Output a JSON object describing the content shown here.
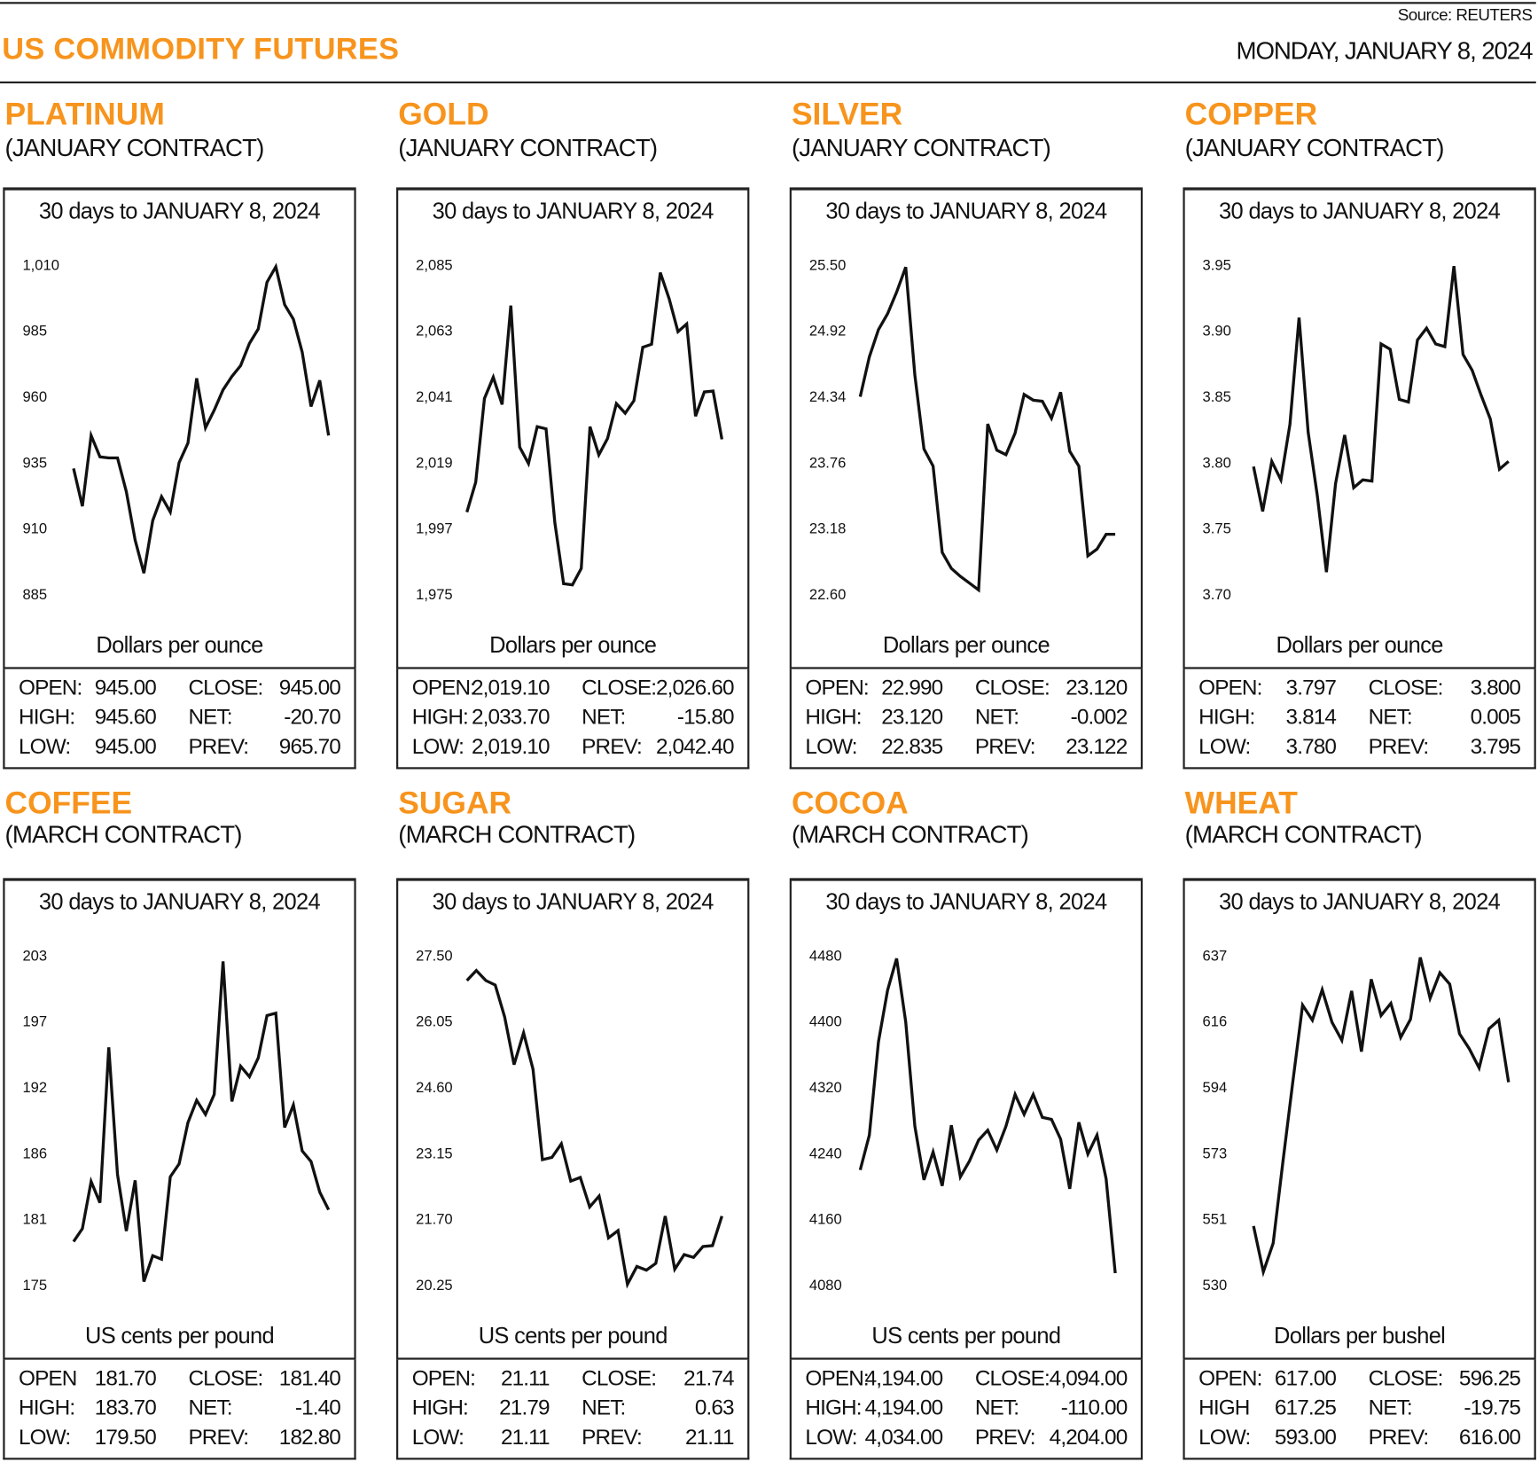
{
  "header": {
    "title": "US COMMODITY FUTURES",
    "source": "Source: REUTERS",
    "date": "MONDAY, JANUARY 8, 2024"
  },
  "colors": {
    "accent": "#F7941D",
    "line": "#111111"
  },
  "chart_data": [
    {
      "type": "line",
      "name": "PLATINUM",
      "contract": "(JANUARY CONTRACT)",
      "title": "30 days to JANUARY 8, 2024",
      "ylabel": "Dollars per ounce",
      "yticks": [
        "1,010",
        "985",
        "960",
        "935",
        "910",
        "885"
      ],
      "ytick_values": [
        1010,
        985,
        960,
        935,
        910,
        885
      ],
      "ylim": [
        885,
        1010
      ],
      "values": [
        932.8,
        918.5,
        945.3,
        937.2,
        936.8,
        936.8,
        924,
        905.6,
        893.1,
        913,
        922.1,
        916.3,
        935,
        942.4,
        967,
        948.2,
        954.9,
        962.6,
        967.7,
        971.8,
        980.2,
        985.7,
        1003.4,
        1009.3,
        994.9,
        989.4,
        976.9,
        956.3,
        966.2,
        945.3
      ],
      "stats": [
        [
          "OPEN:",
          "945.00",
          "CLOSE:",
          "945.00"
        ],
        [
          "HIGH:",
          "945.60",
          "NET:",
          "-20.70"
        ],
        [
          "LOW:",
          "945.00",
          "PREV:",
          "965.70"
        ]
      ]
    },
    {
      "type": "line",
      "name": "GOLD",
      "contract": "(JANUARY CONTRACT)",
      "title": "30 days to JANUARY 8, 2024",
      "ylabel": "Dollars per ounce",
      "yticks": [
        "2,085",
        "2,063",
        "2,041",
        "2,019",
        "1,997",
        "1,975"
      ],
      "ytick_values": [
        2085,
        2063,
        2041,
        2019,
        1997,
        1975
      ],
      "ylim": [
        1975,
        2085
      ],
      "values": [
        2002.5,
        2012.5,
        2040.4,
        2047.5,
        2038.4,
        2071.4,
        2024.2,
        2018.7,
        2031,
        2030.3,
        1998.9,
        1978.6,
        1978.2,
        1983.7,
        2031,
        2021.6,
        2027.1,
        2038.7,
        2035.5,
        2039.7,
        2057.5,
        2058.5,
        2082.4,
        2073.7,
        2062.7,
        2065.3,
        2034.5,
        2042.6,
        2042.9,
        2026.8
      ],
      "stats": [
        [
          "OPEN:",
          "2,019.10",
          "CLOSE:",
          "2,026.60"
        ],
        [
          "HIGH:",
          "2,033.70",
          "NET:",
          "-15.80"
        ],
        [
          "LOW:",
          "2,019.10",
          "PREV:",
          "2,042.40"
        ]
      ]
    },
    {
      "type": "line",
      "name": "SILVER",
      "contract": "(JANUARY CONTRACT)",
      "title": "30 days to JANUARY 8, 2024",
      "ylabel": "Dollars per ounce",
      "yticks": [
        "25.50",
        "24.92",
        "24.34",
        "23.76",
        "23.18",
        "22.60"
      ],
      "ytick_values": [
        25.5,
        24.92,
        24.34,
        23.76,
        23.18,
        22.6
      ],
      "ylim": [
        22.6,
        25.5
      ],
      "values": [
        24.34,
        24.69,
        24.93,
        25.07,
        25.26,
        25.48,
        24.53,
        23.88,
        23.73,
        22.97,
        22.83,
        22.76,
        22.7,
        22.64,
        24.1,
        23.87,
        23.83,
        24.02,
        24.36,
        24.31,
        24.3,
        24.15,
        24.38,
        23.86,
        23.73,
        22.94,
        23.0,
        23.13,
        23.13
      ],
      "stats": [
        [
          "OPEN:",
          "22.990",
          "CLOSE:",
          "23.120"
        ],
        [
          "HIGH:",
          "23.120",
          "NET:",
          "-0.002"
        ],
        [
          "LOW:",
          "22.835",
          "PREV:",
          "23.122"
        ]
      ]
    },
    {
      "type": "line",
      "name": "COPPER",
      "contract": "(JANUARY CONTRACT)",
      "title": "30 days to JANUARY 8, 2024",
      "ylabel": "Dollars per ounce",
      "yticks": [
        "3.95",
        "3.90",
        "3.85",
        "3.80",
        "3.75",
        "3.70"
      ],
      "ytick_values": [
        3.95,
        3.9,
        3.85,
        3.8,
        3.75,
        3.7
      ],
      "ylim": [
        3.7,
        3.95
      ],
      "values": [
        3.797,
        3.763,
        3.801,
        3.787,
        3.829,
        3.91,
        3.823,
        3.775,
        3.717,
        3.784,
        3.821,
        3.781,
        3.787,
        3.786,
        3.89,
        3.886,
        3.848,
        3.846,
        3.893,
        3.902,
        3.89,
        3.888,
        3.949,
        3.882,
        3.87,
        3.851,
        3.833,
        3.795,
        3.801
      ],
      "stats": [
        [
          "OPEN:",
          "3.797",
          "CLOSE:",
          "3.800"
        ],
        [
          "HIGH:",
          "3.814",
          "NET:",
          "0.005"
        ],
        [
          "LOW:",
          "3.780",
          "PREV:",
          "3.795"
        ]
      ]
    },
    {
      "type": "line",
      "name": "COFFEE",
      "contract": "(MARCH CONTRACT)",
      "title": "30 days to JANUARY 8, 2024",
      "ylabel": "US cents per pound",
      "yticks": [
        "203",
        "197",
        "192",
        "186",
        "181",
        "175"
      ],
      "ytick_values": [
        203,
        197.4,
        191.8,
        186.2,
        180.6,
        175
      ],
      "ylim": [
        175,
        203
      ],
      "values": [
        178.7,
        179.8,
        183.8,
        182,
        195.2,
        184.4,
        179.6,
        183.9,
        175.3,
        177.5,
        177.2,
        184.2,
        185.3,
        188.8,
        190.7,
        189.5,
        191.2,
        202.5,
        190.6,
        193.6,
        192.7,
        194.3,
        197.9,
        198.1,
        188.4,
        190.3,
        186.4,
        185.5,
        182.9,
        181.4
      ],
      "stats": [
        [
          "OPEN",
          "181.70",
          "CLOSE:",
          "181.40"
        ],
        [
          "HIGH:",
          "183.70",
          "NET:",
          "-1.40"
        ],
        [
          "LOW:",
          "179.50",
          "PREV:",
          "182.80"
        ]
      ]
    },
    {
      "type": "line",
      "name": "SUGAR",
      "contract": "(MARCH CONTRACT)",
      "title": "30 days to JANUARY 8, 2024",
      "ylabel": "US cents per pound",
      "yticks": [
        "27.50",
        "26.05",
        "24.60",
        "23.15",
        "21.70",
        "20.25"
      ],
      "ytick_values": [
        27.5,
        26.05,
        24.6,
        23.15,
        21.7,
        20.25
      ],
      "ylim": [
        20.25,
        27.5
      ],
      "values": [
        26.95,
        27.17,
        26.95,
        26.85,
        26.15,
        25.1,
        25.8,
        25.0,
        23.01,
        23.06,
        23.36,
        22.54,
        22.62,
        21.97,
        22.21,
        21.29,
        21.45,
        20.27,
        20.66,
        20.58,
        20.73,
        21.77,
        20.6,
        20.92,
        20.86,
        21.1,
        21.12,
        21.77
      ],
      "stats": [
        [
          "OPEN:",
          "21.11",
          "CLOSE:",
          "21.74"
        ],
        [
          "HIGH:",
          "21.79",
          "NET:",
          "0.63"
        ],
        [
          "LOW:",
          "21.11",
          "PREV:",
          "21.11"
        ]
      ]
    },
    {
      "type": "line",
      "name": "COCOA",
      "contract": "(MARCH CONTRACT)",
      "title": "30 days to JANUARY 8, 2024",
      "ylabel": "US cents per pound",
      "yticks": [
        "4480",
        "4400",
        "4320",
        "4240",
        "4160",
        "4080"
      ],
      "ytick_values": [
        4480,
        4400,
        4320,
        4240,
        4160,
        4080
      ],
      "ylim": [
        4080,
        4480
      ],
      "values": [
        4219.8,
        4262,
        4375.2,
        4437.9,
        4476.4,
        4399.3,
        4272.8,
        4207.7,
        4241.5,
        4200.5,
        4274,
        4211.3,
        4230.6,
        4255.9,
        4268,
        4243.9,
        4272.8,
        4311.4,
        4287.3,
        4311.4,
        4283.6,
        4281.2,
        4257.1,
        4196.9,
        4277.6,
        4239,
        4262,
        4208.9,
        4094.5
      ],
      "stats": [
        [
          "OPEN:",
          "4,194.00",
          "CLOSE:",
          "4,094.00"
        ],
        [
          "HIGH:",
          "4,194.00",
          "NET:",
          "-110.00"
        ],
        [
          "LOW:",
          "4,034.00",
          "PREV:",
          "4,204.00"
        ]
      ]
    },
    {
      "type": "line",
      "name": "WHEAT",
      "contract": "(MARCH CONTRACT)",
      "title": "30 days to JANUARY 8, 2024",
      "ylabel": "Dollars per bushel",
      "yticks": [
        "637",
        "616",
        "594",
        "573",
        "551",
        "530"
      ],
      "ytick_values": [
        637,
        615.6,
        594.2,
        572.8,
        551.4,
        530
      ],
      "ylim": [
        530,
        637
      ],
      "values": [
        549.2,
        534.3,
        543.6,
        570.2,
        595.9,
        620.9,
        616,
        625.9,
        615.3,
        609.5,
        625.5,
        605.8,
        629.3,
        617.5,
        621.5,
        610.4,
        616.3,
        636.4,
        623.1,
        631.4,
        627.7,
        611.6,
        606.7,
        600.5,
        613.2,
        616,
        595.9
      ],
      "stats": [
        [
          "OPEN:",
          "617.00",
          "CLOSE:",
          "596.25"
        ],
        [
          "HIGH",
          "617.25",
          "NET:",
          "-19.75"
        ],
        [
          "LOW:",
          "593.00",
          "PREV:",
          "616.00"
        ]
      ]
    }
  ]
}
